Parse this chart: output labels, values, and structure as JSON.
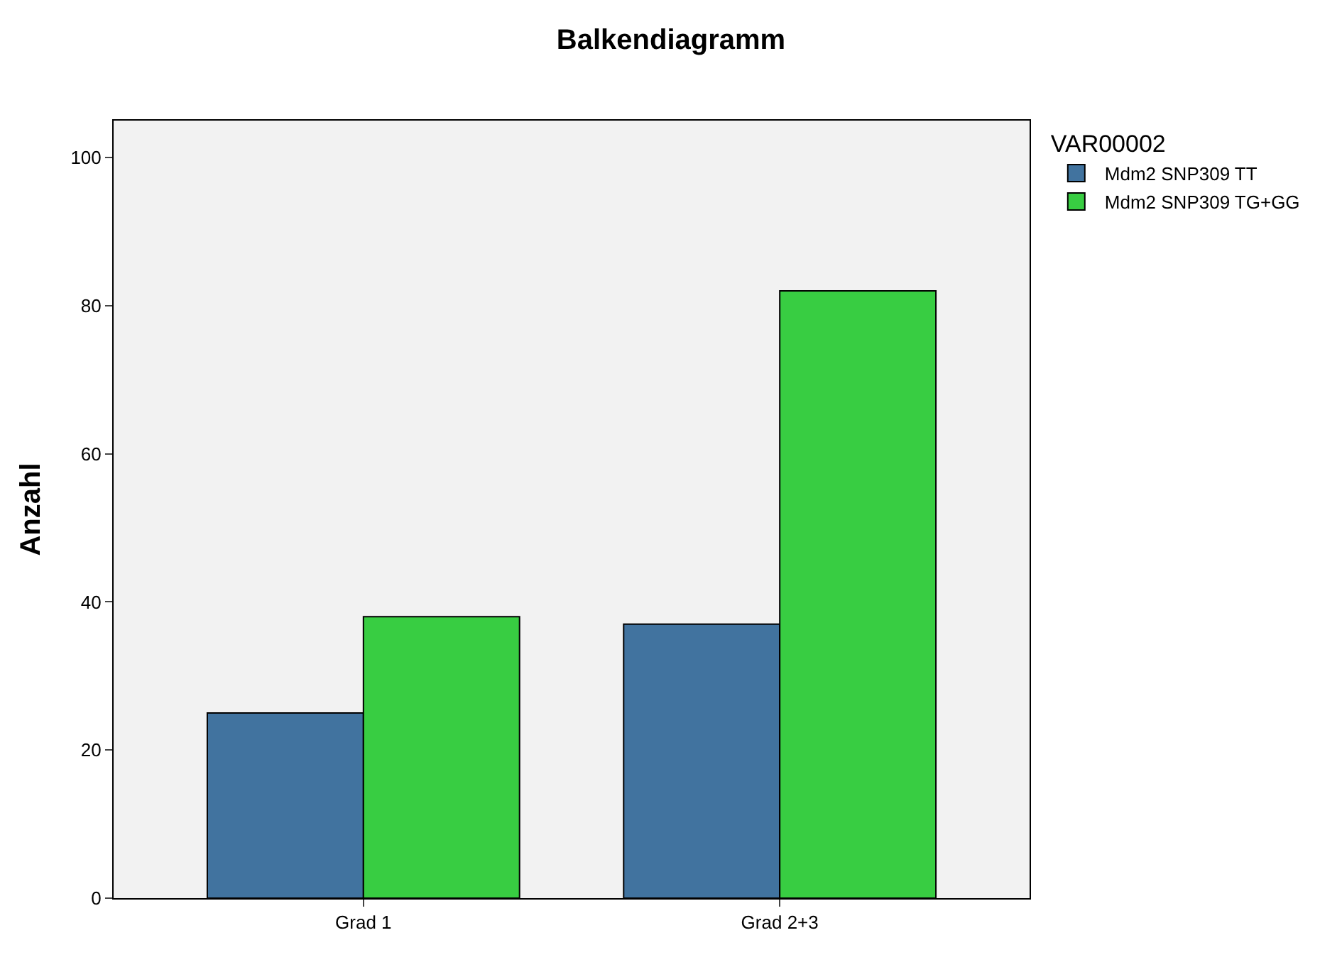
{
  "chart_data": {
    "type": "bar",
    "title": "Balkendiagramm",
    "ylabel": "Anzahl",
    "legend_title": "VAR00002",
    "categories": [
      "Grad 1",
      "Grad 2+3"
    ],
    "series": [
      {
        "name": "Mdm2 SNP309 TT",
        "color": "#41739f",
        "values": [
          25,
          37
        ]
      },
      {
        "name": "Mdm2 SNP309 TG+GG",
        "color": "#38cd42",
        "values": [
          38,
          82
        ]
      }
    ],
    "ylim": [
      0,
      105
    ],
    "yticks": [
      0,
      20,
      40,
      60,
      80,
      100
    ],
    "grid": false,
    "legend": "right"
  }
}
